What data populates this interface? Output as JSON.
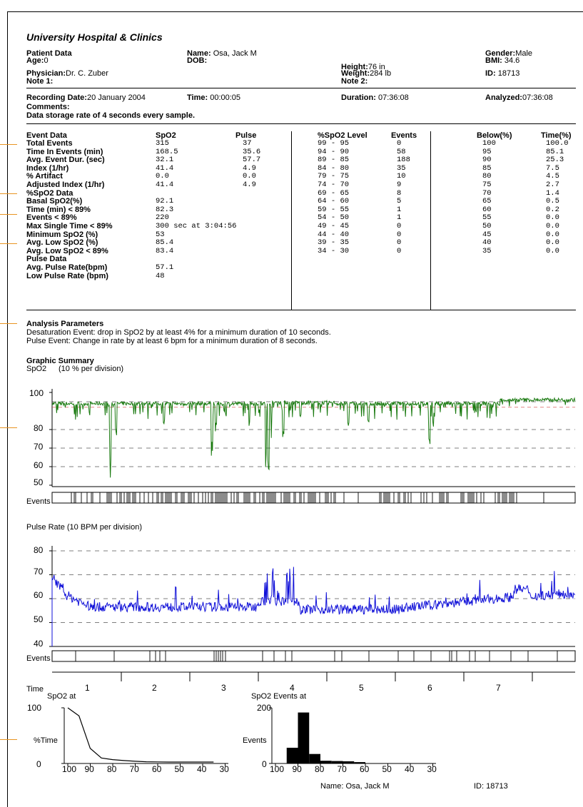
{
  "header": {
    "hospital": "University Hospital & Clinics",
    "patient_data_label": "Patient Data",
    "name_label": "Name:",
    "name": "Osa, Jack M",
    "gender_label": "Gender:",
    "gender": "Male",
    "age_label": "Age:",
    "age": "0",
    "dob_label": "DOB:",
    "bmi_label": "BMI:",
    "bmi": "34.6",
    "height_label": "Height:",
    "height": "76 in",
    "physician_label": "Physician:",
    "physician": "Dr. C. Zuber",
    "weight_label": "Weight:",
    "weight": "284 lb",
    "id_label": "ID:",
    "id": "18713",
    "note1_label": "Note 1:",
    "note2_label": "Note 2:"
  },
  "recording": {
    "date_label": "Recording Date:",
    "date": "20 January 2004",
    "time_label": "Time:",
    "time": "00:00:05",
    "duration_label": "Duration:",
    "duration": "07:36:08",
    "analyzed_label": "Analyzed:",
    "analyzed": "07:36:08",
    "comments_label": "Comments:",
    "comments": "Data storage rate of 4 seconds every sample."
  },
  "event_table": {
    "headers": {
      "event": "Event Data",
      "spo2": "SpO2",
      "pulse": "Pulse",
      "level": "%SpO2 Level",
      "events": "Events",
      "below": "Below(%)",
      "time": "Time(%)"
    },
    "rows": [
      {
        "label": "Total Events",
        "spo2": "315",
        "pulse": "37"
      },
      {
        "label": "Time In Events (min)",
        "spo2": "168.5",
        "pulse": "35.6"
      },
      {
        "label": "Avg. Event Dur. (sec)",
        "spo2": "32.1",
        "pulse": "57.7"
      },
      {
        "label": "Index (1/hr)",
        "spo2": "41.4",
        "pulse": "4.9"
      },
      {
        "label": "% Artifact",
        "spo2": "0.0",
        "pulse": "0.0"
      },
      {
        "label": "Adjusted Index (1/hr)",
        "spo2": "41.4",
        "pulse": "4.9"
      },
      {
        "label": "%SpO2 Data",
        "spo2": "",
        "pulse": ""
      },
      {
        "label": "Basal SpO2(%)",
        "spo2": "92.1",
        "pulse": ""
      },
      {
        "label": "Time (min) <  89%",
        "spo2": "82.3",
        "pulse": ""
      },
      {
        "label": "Events <  89%",
        "spo2": "220",
        "pulse": ""
      },
      {
        "label": "Max Single Time < 89%",
        "spo2": "300 sec at 3:04:56",
        "pulse": ""
      },
      {
        "label": "Minimum SpO2 (%)",
        "spo2": "53",
        "pulse": ""
      },
      {
        "label": "Avg. Low SpO2 (%)",
        "spo2": "85.4",
        "pulse": ""
      },
      {
        "label": "Avg. Low SpO2 <  89%",
        "spo2": "83.4",
        "pulse": ""
      },
      {
        "label": "Pulse Data",
        "spo2": "",
        "pulse": ""
      },
      {
        "label": "Avg. Pulse Rate(bpm)",
        "spo2": "57.1",
        "pulse": ""
      },
      {
        "label": "Low Pulse Rate (bpm)",
        "spo2": "48",
        "pulse": ""
      }
    ],
    "levels": [
      {
        "range": "99 - 95",
        "events": "0"
      },
      {
        "range": "94 - 90",
        "events": "58"
      },
      {
        "range": "89 - 85",
        "events": "188"
      },
      {
        "range": "84 - 80",
        "events": "35"
      },
      {
        "range": "79 - 75",
        "events": "10"
      },
      {
        "range": "74 - 70",
        "events": "9"
      },
      {
        "range": "69 - 65",
        "events": "8"
      },
      {
        "range": "64 - 60",
        "events": "5"
      },
      {
        "range": "59 - 55",
        "events": "1"
      },
      {
        "range": "54 - 50",
        "events": "1"
      },
      {
        "range": "49 - 45",
        "events": "0"
      },
      {
        "range": "44 - 40",
        "events": "0"
      },
      {
        "range": "39 - 35",
        "events": "0"
      },
      {
        "range": "34 - 30",
        "events": "0"
      }
    ],
    "below": [
      {
        "below": "100",
        "time": "100.0"
      },
      {
        "below": "95",
        "time": "85.1"
      },
      {
        "below": "90",
        "time": "25.3"
      },
      {
        "below": "85",
        "time": "7.5"
      },
      {
        "below": "80",
        "time": "4.5"
      },
      {
        "below": "75",
        "time": "2.7"
      },
      {
        "below": "70",
        "time": "1.4"
      },
      {
        "below": "65",
        "time": "0.5"
      },
      {
        "below": "60",
        "time": "0.2"
      },
      {
        "below": "55",
        "time": "0.0"
      },
      {
        "below": "50",
        "time": "0.0"
      },
      {
        "below": "45",
        "time": "0.0"
      },
      {
        "below": "40",
        "time": "0.0"
      },
      {
        "below": "35",
        "time": "0.0"
      }
    ]
  },
  "analysis": {
    "title": "Analysis Parameters",
    "desat": "Desaturation Event: drop in SpO2 by at least 4% for a minimum duration of 10 seconds.",
    "pulse": "Pulse Event: Change in rate by at least 6 bpm for a minimum duration of 8 seconds."
  },
  "graphic": {
    "title": "Graphic Summary",
    "spo2_title": "SpO2",
    "spo2_div": "(10 %  per division)",
    "pulse_title": "Pulse Rate (10 BPM per division)",
    "events_label": "Events",
    "time_label": "Time",
    "color_spo2": "#1a7a10",
    "color_pulse": "#1010d8"
  },
  "chart_data": [
    {
      "type": "line",
      "title": "SpO2",
      "ylim": [
        50,
        100
      ],
      "yticks": [
        "100",
        "80",
        "70",
        "60",
        "50"
      ],
      "color": "#1a7a10"
    },
    {
      "type": "line",
      "title": "Pulse Rate",
      "ylim": [
        40,
        80
      ],
      "yticks": [
        "80",
        "70",
        "60",
        "50",
        "40"
      ],
      "color": "#1010d8"
    },
    {
      "type": "line",
      "title": "SpO2 at",
      "xlabel": "",
      "ylabel": "%Time",
      "x": [
        100,
        95,
        90,
        85,
        80,
        75,
        70,
        65,
        60,
        55,
        50,
        45,
        40,
        35
      ],
      "y": [
        100.0,
        85.1,
        25.3,
        7.5,
        4.5,
        2.7,
        1.4,
        0.5,
        0.2,
        0.0,
        0.0,
        0.0,
        0.0,
        0.0
      ],
      "xticks": [
        "100",
        "90",
        "80",
        "70",
        "60",
        "50",
        "40",
        "30"
      ],
      "yticks": [
        "100",
        "0"
      ],
      "ylim": [
        0,
        100
      ],
      "xlim": [
        100,
        30
      ]
    },
    {
      "type": "bar",
      "title": "SpO2 Events at",
      "ylabel": "Events",
      "categories": [
        "99-95",
        "94-90",
        "89-85",
        "84-80",
        "79-75",
        "74-70",
        "69-65",
        "64-60",
        "59-55",
        "54-50",
        "49-45",
        "44-40",
        "39-35",
        "34-30"
      ],
      "values": [
        0,
        58,
        188,
        35,
        10,
        9,
        8,
        5,
        1,
        1,
        0,
        0,
        0,
        0
      ],
      "xticks": [
        "100",
        "90",
        "80",
        "70",
        "60",
        "50",
        "40",
        "30"
      ],
      "yticks": [
        "200",
        "0"
      ],
      "ylim": [
        0,
        200
      ]
    }
  ],
  "time_axis": [
    "1",
    "2",
    "3",
    "4",
    "5",
    "6",
    "7"
  ],
  "footer": {
    "name": "Name: Osa, Jack M",
    "id": "ID: 18713"
  }
}
